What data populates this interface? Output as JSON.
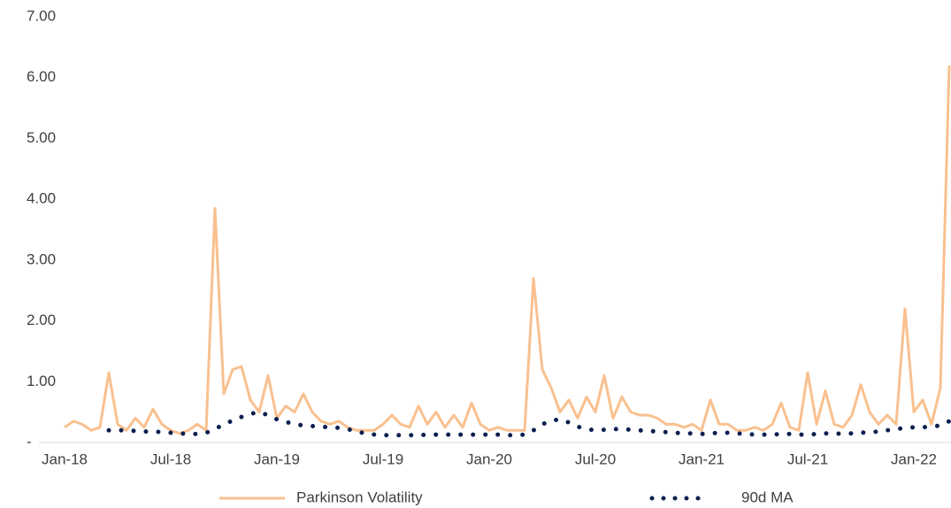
{
  "chart_data": {
    "type": "line",
    "categories": [
      "Jan-18",
      null,
      null,
      null,
      null,
      null,
      null,
      null,
      null,
      null,
      null,
      null,
      "Jul-18",
      null,
      null,
      null,
      null,
      null,
      null,
      null,
      null,
      null,
      null,
      null,
      "Jan-19",
      null,
      null,
      null,
      null,
      null,
      null,
      null,
      null,
      null,
      null,
      null,
      "Jul-19",
      null,
      null,
      null,
      null,
      null,
      null,
      null,
      null,
      null,
      null,
      null,
      "Jan-20",
      null,
      null,
      null,
      null,
      null,
      null,
      null,
      null,
      null,
      null,
      null,
      "Jul-20",
      null,
      null,
      null,
      null,
      null,
      null,
      null,
      null,
      null,
      null,
      null,
      "Jan-21",
      null,
      null,
      null,
      null,
      null,
      null,
      null,
      null,
      null,
      null,
      null,
      "Jul-21",
      null,
      null,
      null,
      null,
      null,
      null,
      null,
      null,
      null,
      null,
      null,
      "Jan-22",
      null,
      null,
      null,
      null
    ],
    "series": [
      {
        "name": "Parkinson Volatility",
        "color": "#f9c08f",
        "style": "solid",
        "values": [
          0.25,
          0.35,
          0.3,
          0.2,
          0.25,
          1.15,
          0.3,
          0.2,
          0.4,
          0.25,
          0.55,
          0.3,
          0.2,
          0.15,
          0.2,
          0.3,
          0.2,
          3.85,
          0.8,
          1.2,
          1.25,
          0.7,
          0.5,
          1.1,
          0.4,
          0.6,
          0.5,
          0.8,
          0.5,
          0.35,
          0.3,
          0.35,
          0.25,
          0.2,
          0.2,
          0.2,
          0.3,
          0.45,
          0.3,
          0.25,
          0.6,
          0.3,
          0.5,
          0.25,
          0.45,
          0.25,
          0.65,
          0.3,
          0.2,
          0.25,
          0.2,
          0.2,
          0.2,
          2.7,
          1.2,
          0.9,
          0.5,
          0.7,
          0.4,
          0.75,
          0.5,
          1.1,
          0.4,
          0.75,
          0.5,
          0.45,
          0.45,
          0.4,
          0.3,
          0.3,
          0.25,
          0.3,
          0.2,
          0.7,
          0.3,
          0.3,
          0.2,
          0.2,
          0.25,
          0.2,
          0.3,
          0.65,
          0.25,
          0.2,
          1.15,
          0.3,
          0.85,
          0.3,
          0.25,
          0.45,
          0.95,
          0.5,
          0.3,
          0.45,
          0.3,
          2.2,
          0.5,
          0.7,
          0.3,
          0.9,
          6.2
        ]
      },
      {
        "name": "90d MA",
        "color": "#0b1f4f",
        "style": "dotted",
        "values": [
          null,
          null,
          null,
          null,
          null,
          0.2,
          0.2,
          0.2,
          0.19,
          0.18,
          0.18,
          0.17,
          0.16,
          0.15,
          0.14,
          0.14,
          0.16,
          0.22,
          0.3,
          0.36,
          0.42,
          0.47,
          0.5,
          0.45,
          0.38,
          0.34,
          0.3,
          0.28,
          0.27,
          0.26,
          0.25,
          0.24,
          0.22,
          0.18,
          0.15,
          0.13,
          0.12,
          0.12,
          0.12,
          0.12,
          0.12,
          0.13,
          0.13,
          0.13,
          0.13,
          0.13,
          0.13,
          0.13,
          0.13,
          0.13,
          0.12,
          0.12,
          0.13,
          0.2,
          0.3,
          0.36,
          0.38,
          0.33,
          0.26,
          0.22,
          0.2,
          0.21,
          0.22,
          0.22,
          0.21,
          0.2,
          0.19,
          0.18,
          0.17,
          0.16,
          0.15,
          0.15,
          0.14,
          0.15,
          0.16,
          0.16,
          0.15,
          0.14,
          0.13,
          0.13,
          0.13,
          0.14,
          0.14,
          0.13,
          0.13,
          0.14,
          0.15,
          0.15,
          0.14,
          0.15,
          0.16,
          0.17,
          0.18,
          0.2,
          0.22,
          0.24,
          0.25,
          0.25,
          0.26,
          0.28,
          0.35
        ]
      }
    ],
    "ylim": [
      0,
      7
    ],
    "yticks": [
      {
        "value": 0,
        "label": "-"
      },
      {
        "value": 1,
        "label": "1.00"
      },
      {
        "value": 2,
        "label": "2.00"
      },
      {
        "value": 3,
        "label": "3.00"
      },
      {
        "value": 4,
        "label": "4.00"
      },
      {
        "value": 5,
        "label": "5.00"
      },
      {
        "value": 6,
        "label": "6.00"
      },
      {
        "value": 7,
        "label": "7.00"
      }
    ],
    "grid": false,
    "legend": "bottom"
  }
}
